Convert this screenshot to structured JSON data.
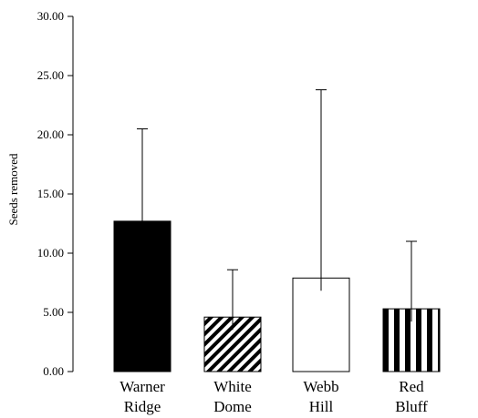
{
  "chart_data": {
    "type": "bar",
    "categories": [
      [
        "Warner",
        "Ridge"
      ],
      [
        "White",
        "Dome"
      ],
      [
        "Webb",
        "Hill"
      ],
      [
        "Red",
        "Bluff"
      ]
    ],
    "values": [
      12.7,
      4.6,
      7.9,
      5.3
    ],
    "error_upper": [
      20.5,
      8.6,
      23.8,
      11.0
    ],
    "fills": [
      "solid-black",
      "diagonal-stripes",
      "white",
      "vertical-stripes"
    ],
    "ylabel": "Seeds removed",
    "xlabel": "",
    "title": "",
    "ylim": [
      0,
      30
    ],
    "yticks": [
      "0.00",
      "5.00",
      "10.00",
      "15.00",
      "20.00",
      "25.00",
      "30.00"
    ],
    "grid": false,
    "legend": "none"
  }
}
